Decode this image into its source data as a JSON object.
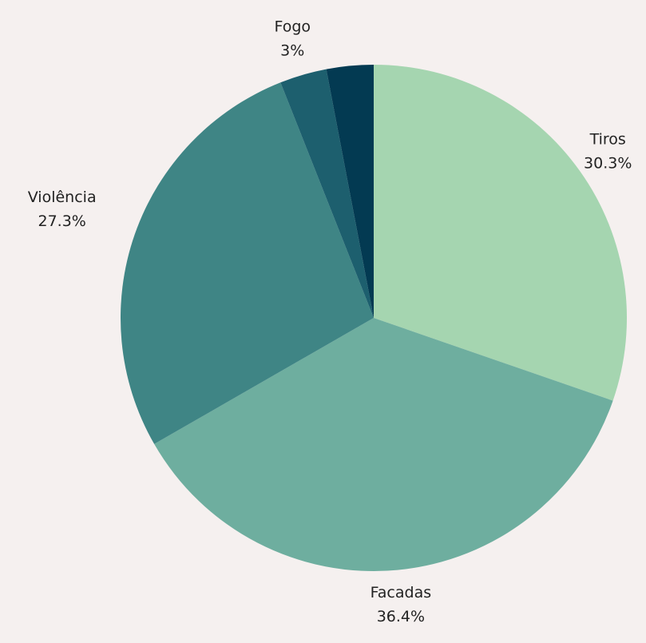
{
  "chart_data": {
    "type": "pie",
    "categories": [
      "Tiros",
      "Facadas",
      "Violência",
      "Fogo",
      null
    ],
    "values": [
      30.3,
      36.4,
      27.3,
      3,
      3
    ],
    "value_labels": [
      "30.3%",
      "36.4%",
      "27.3%",
      "3%",
      null
    ],
    "colors": [
      "#a5d5b0",
      "#6eae9f",
      "#3f8585",
      "#1d5f6e",
      "#033a52"
    ]
  }
}
